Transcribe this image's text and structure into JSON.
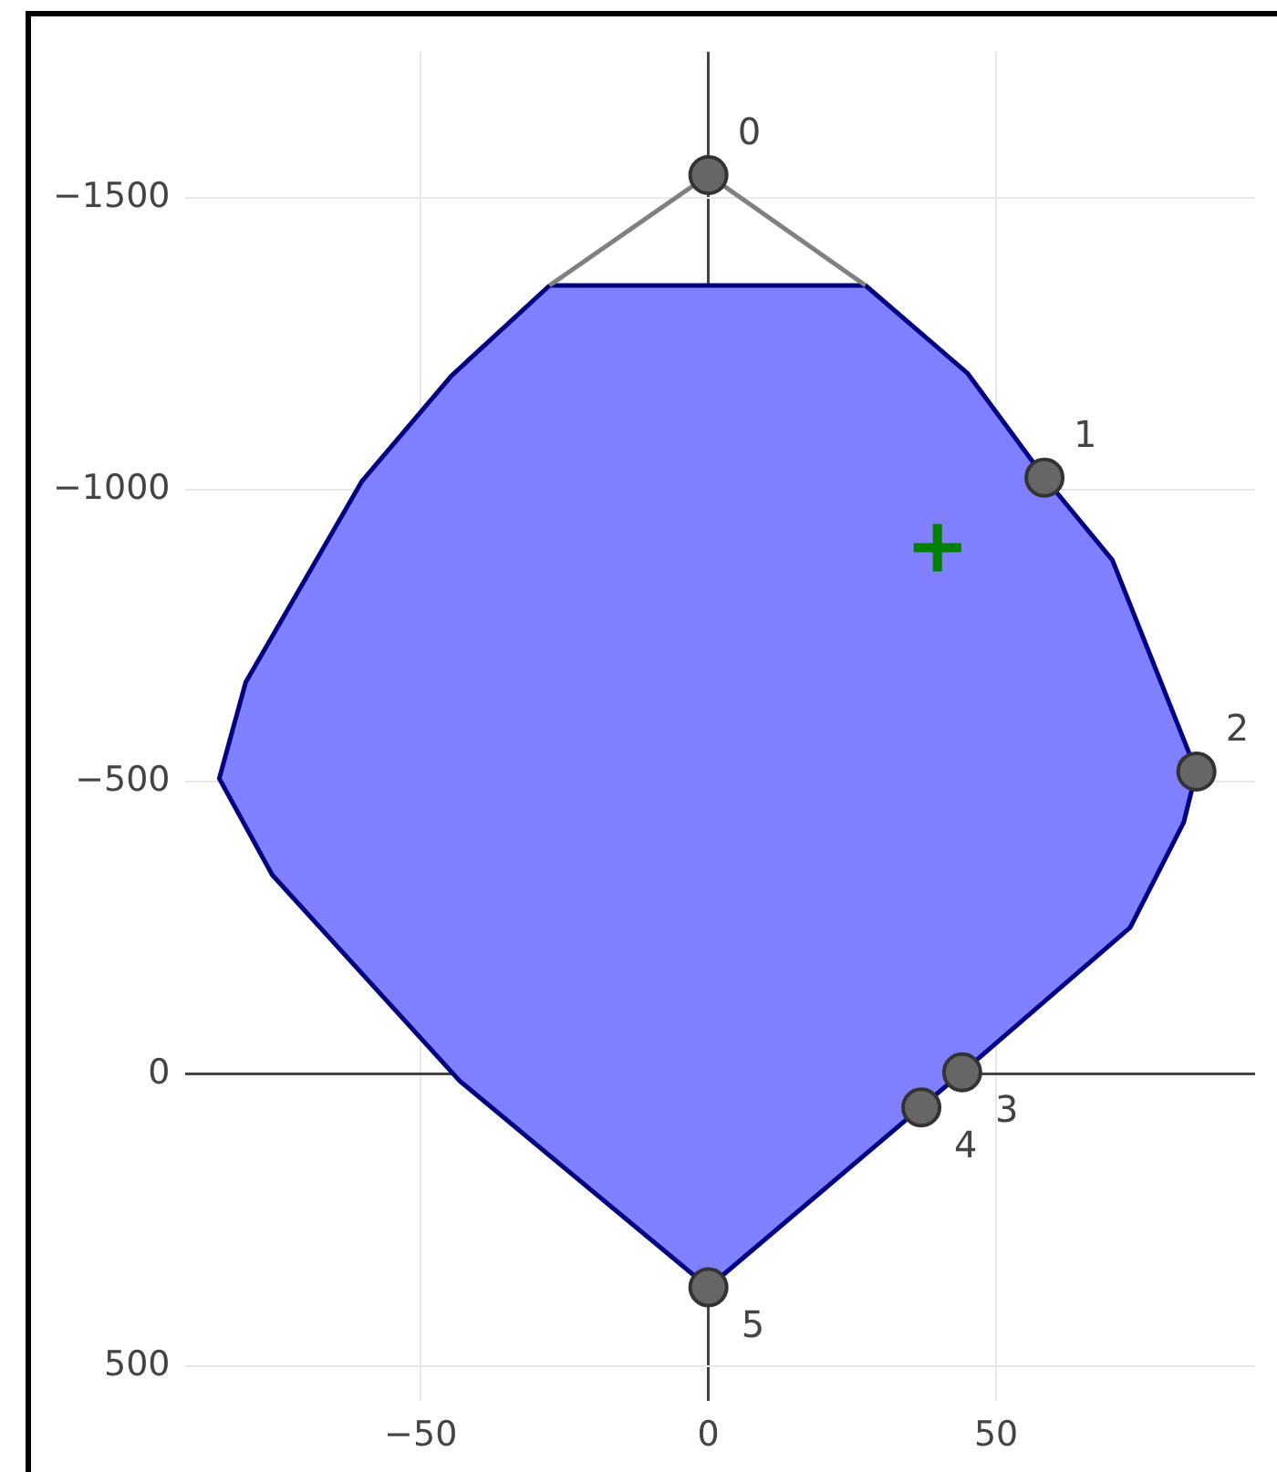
{
  "chart_data": {
    "type": "scatter",
    "xlim": [
      -91,
      95
    ],
    "ylim": [
      560,
      -1750
    ],
    "xticks": [
      {
        "value": -50,
        "label": "−50"
      },
      0,
      50
    ],
    "yticks": [
      {
        "value": -1500,
        "label": "−1500"
      },
      {
        "value": -1000,
        "label": "−1000"
      },
      {
        "value": -500,
        "label": "−500"
      },
      0,
      500
    ],
    "grid": true,
    "legend": false,
    "series": [
      {
        "type": "area",
        "color": "#8080ff",
        "x": [
          -27.6,
          27.3,
          45,
          58.4,
          70.2,
          84.8,
          82.6,
          73.3,
          44.1,
          0,
          -43.2,
          -75.8,
          -85,
          -80.4,
          -60.2,
          -44.7,
          -27.6
        ],
        "values": [
          -1350,
          -1350,
          -1200,
          -1021,
          -880,
          -518,
          -431,
          -251,
          -3,
          365,
          12,
          -341,
          -506,
          -671,
          -1015,
          -1195,
          -1350
        ]
      },
      {
        "type": "line",
        "color": "#808080",
        "marker": "none",
        "x": [
          -27.6,
          0,
          27.3
        ],
        "values": [
          -1350,
          -1539,
          -1350
        ]
      },
      {
        "type": "scatter",
        "color": "#666666",
        "marker": "circle",
        "x": [
          0,
          58.4,
          84.8,
          44.1,
          37,
          0
        ],
        "values": [
          -1539,
          -1021,
          -518,
          -3,
          57,
          365
        ]
      },
      {
        "type": "scatter",
        "color": "#008000",
        "marker": "cross",
        "x": [
          39.8
        ],
        "values": [
          -901
        ]
      }
    ],
    "annotations": [
      {
        "text": "0",
        "x": 0,
        "y": -1539
      },
      {
        "text": "1",
        "x": 58.4,
        "y": -1021
      },
      {
        "text": "2",
        "x": 84.8,
        "y": -518
      },
      {
        "text": "3",
        "x": 44.1,
        "y": -3
      },
      {
        "text": "4",
        "x": 37,
        "y": 57
      },
      {
        "text": "5",
        "x": 0,
        "y": 365
      }
    ]
  }
}
